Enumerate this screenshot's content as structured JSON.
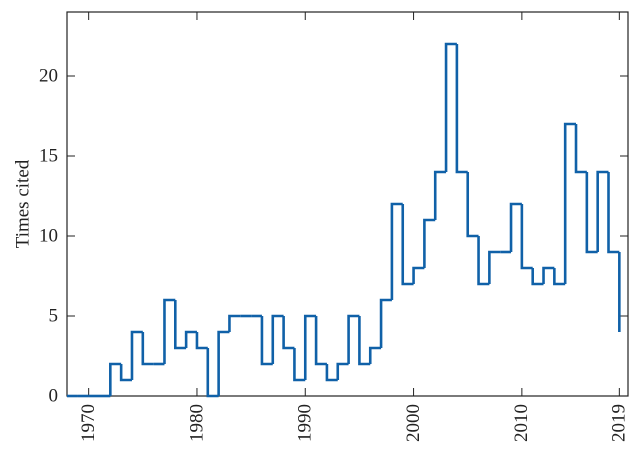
{
  "chart_data": {
    "type": "step",
    "ylabel": "Times cited",
    "x": [
      1968,
      1969,
      1970,
      1971,
      1972,
      1973,
      1974,
      1975,
      1976,
      1977,
      1978,
      1979,
      1980,
      1981,
      1982,
      1983,
      1984,
      1985,
      1986,
      1987,
      1988,
      1989,
      1990,
      1991,
      1992,
      1993,
      1994,
      1995,
      1996,
      1997,
      1998,
      1999,
      2000,
      2001,
      2002,
      2003,
      2004,
      2005,
      2006,
      2007,
      2008,
      2009,
      2010,
      2011,
      2012,
      2013,
      2014,
      2015,
      2016,
      2017,
      2018,
      2019
    ],
    "values": [
      0,
      0,
      0,
      0,
      2,
      1,
      4,
      2,
      2,
      6,
      3,
      4,
      3,
      0,
      4,
      5,
      5,
      5,
      2,
      5,
      3,
      1,
      5,
      2,
      1,
      2,
      5,
      2,
      3,
      6,
      12,
      7,
      8,
      11,
      14,
      22,
      14,
      10,
      7,
      9,
      9,
      12,
      8,
      7,
      8,
      7,
      17,
      14,
      9,
      14,
      9,
      4
    ],
    "color": "#1061a8",
    "xlim": [
      1968,
      2019.8
    ],
    "xticks": [
      1970,
      1980,
      1990,
      2000,
      2010,
      2019
    ],
    "ylim": [
      0,
      24
    ],
    "yticks": [
      0,
      5,
      10,
      15,
      20
    ]
  }
}
